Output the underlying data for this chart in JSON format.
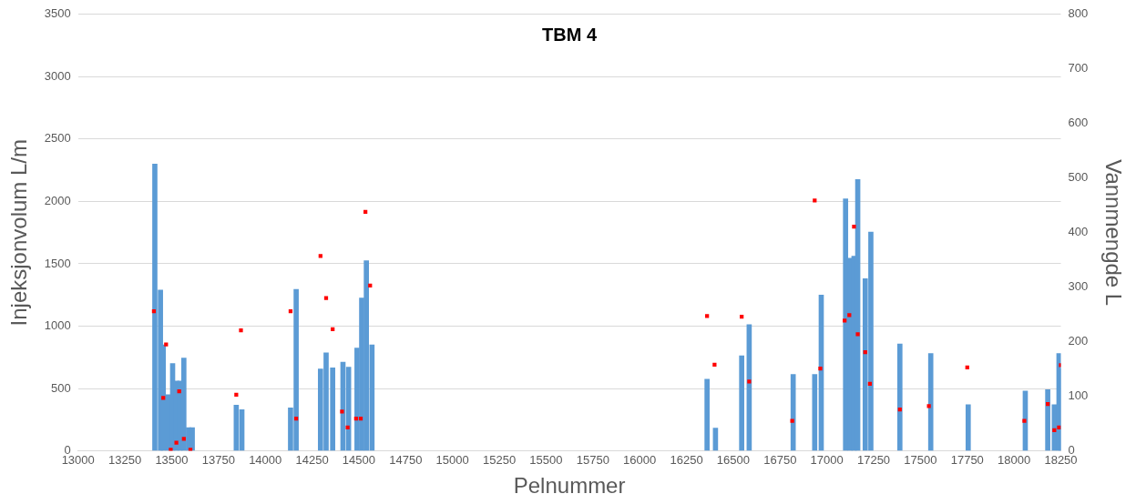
{
  "chart_data": {
    "type": "bar",
    "title": "TBM 4",
    "xlabel": "Pelnummer",
    "ylabel": "Injeksjonvolum L/m",
    "y2label": "Vannmengde L",
    "xlim": [
      13000,
      18250
    ],
    "xticks": [
      13000,
      13250,
      13500,
      13750,
      14000,
      14250,
      14500,
      14750,
      15000,
      15250,
      15500,
      15750,
      16000,
      16250,
      16500,
      16750,
      17000,
      17250,
      17500,
      17750,
      18000,
      18250
    ],
    "ylim": [
      0,
      3500
    ],
    "yticks": [
      0,
      500,
      1000,
      1500,
      2000,
      2500,
      3000,
      3500
    ],
    "y2lim": [
      0,
      800
    ],
    "y2ticks": [
      0,
      100,
      200,
      300,
      400,
      500,
      600,
      700,
      800
    ],
    "grid": "y",
    "legend": false,
    "series": [
      {
        "color": "#5b9bd5",
        "x": [
          13410,
          13440,
          13455,
          13480,
          13505,
          13525,
          13545,
          13565,
          13590,
          13610,
          13845,
          13875,
          14135,
          14165,
          14295,
          14325,
          14360,
          14415,
          14445,
          14490,
          14515,
          14540,
          14570,
          16360,
          16405,
          16545,
          16585,
          16820,
          16935,
          16970,
          17100,
          17125,
          17145,
          17165,
          17205,
          17235,
          17390,
          17555,
          17755,
          18060,
          18180,
          18215,
          18240,
          18250
        ],
        "values": [
          2300,
          1290,
          850,
          450,
          700,
          560,
          560,
          745,
          187,
          187,
          367,
          330,
          345,
          1295,
          657,
          787,
          665,
          712,
          672,
          825,
          1225,
          1525,
          850,
          575,
          182,
          762,
          1012,
          612,
          612,
          1250,
          2020,
          1545,
          1562,
          2175,
          1380,
          1755,
          857,
          780,
          370,
          480,
          490,
          370,
          780,
          660
        ]
      },
      {
        "type": "scatter",
        "axis": "y2",
        "marker": "square",
        "color": "#ff0000",
        "x": [
          13405,
          13470,
          13455,
          13540,
          13525,
          13565,
          13495,
          13600,
          13845,
          13870,
          14135,
          14165,
          14295,
          14325,
          14360,
          14410,
          14440,
          14485,
          14510,
          14535,
          14560,
          16360,
          16400,
          16545,
          16585,
          16815,
          16935,
          16965,
          17095,
          17120,
          17145,
          17165,
          17205,
          17230,
          17390,
          17545,
          17750,
          18055,
          18180,
          18215,
          18240,
          18250
        ],
        "values": [
          256,
          195,
          97,
          109,
          15,
          22,
          2,
          2,
          103,
          221,
          256,
          59,
          357,
          280,
          223,
          72,
          43,
          59,
          59,
          438,
          303,
          247,
          158,
          246,
          127,
          55,
          459,
          151,
          239,
          249,
          411,
          214,
          181,
          123,
          76,
          82,
          153,
          55,
          86,
          38,
          43,
          157
        ]
      }
    ]
  }
}
